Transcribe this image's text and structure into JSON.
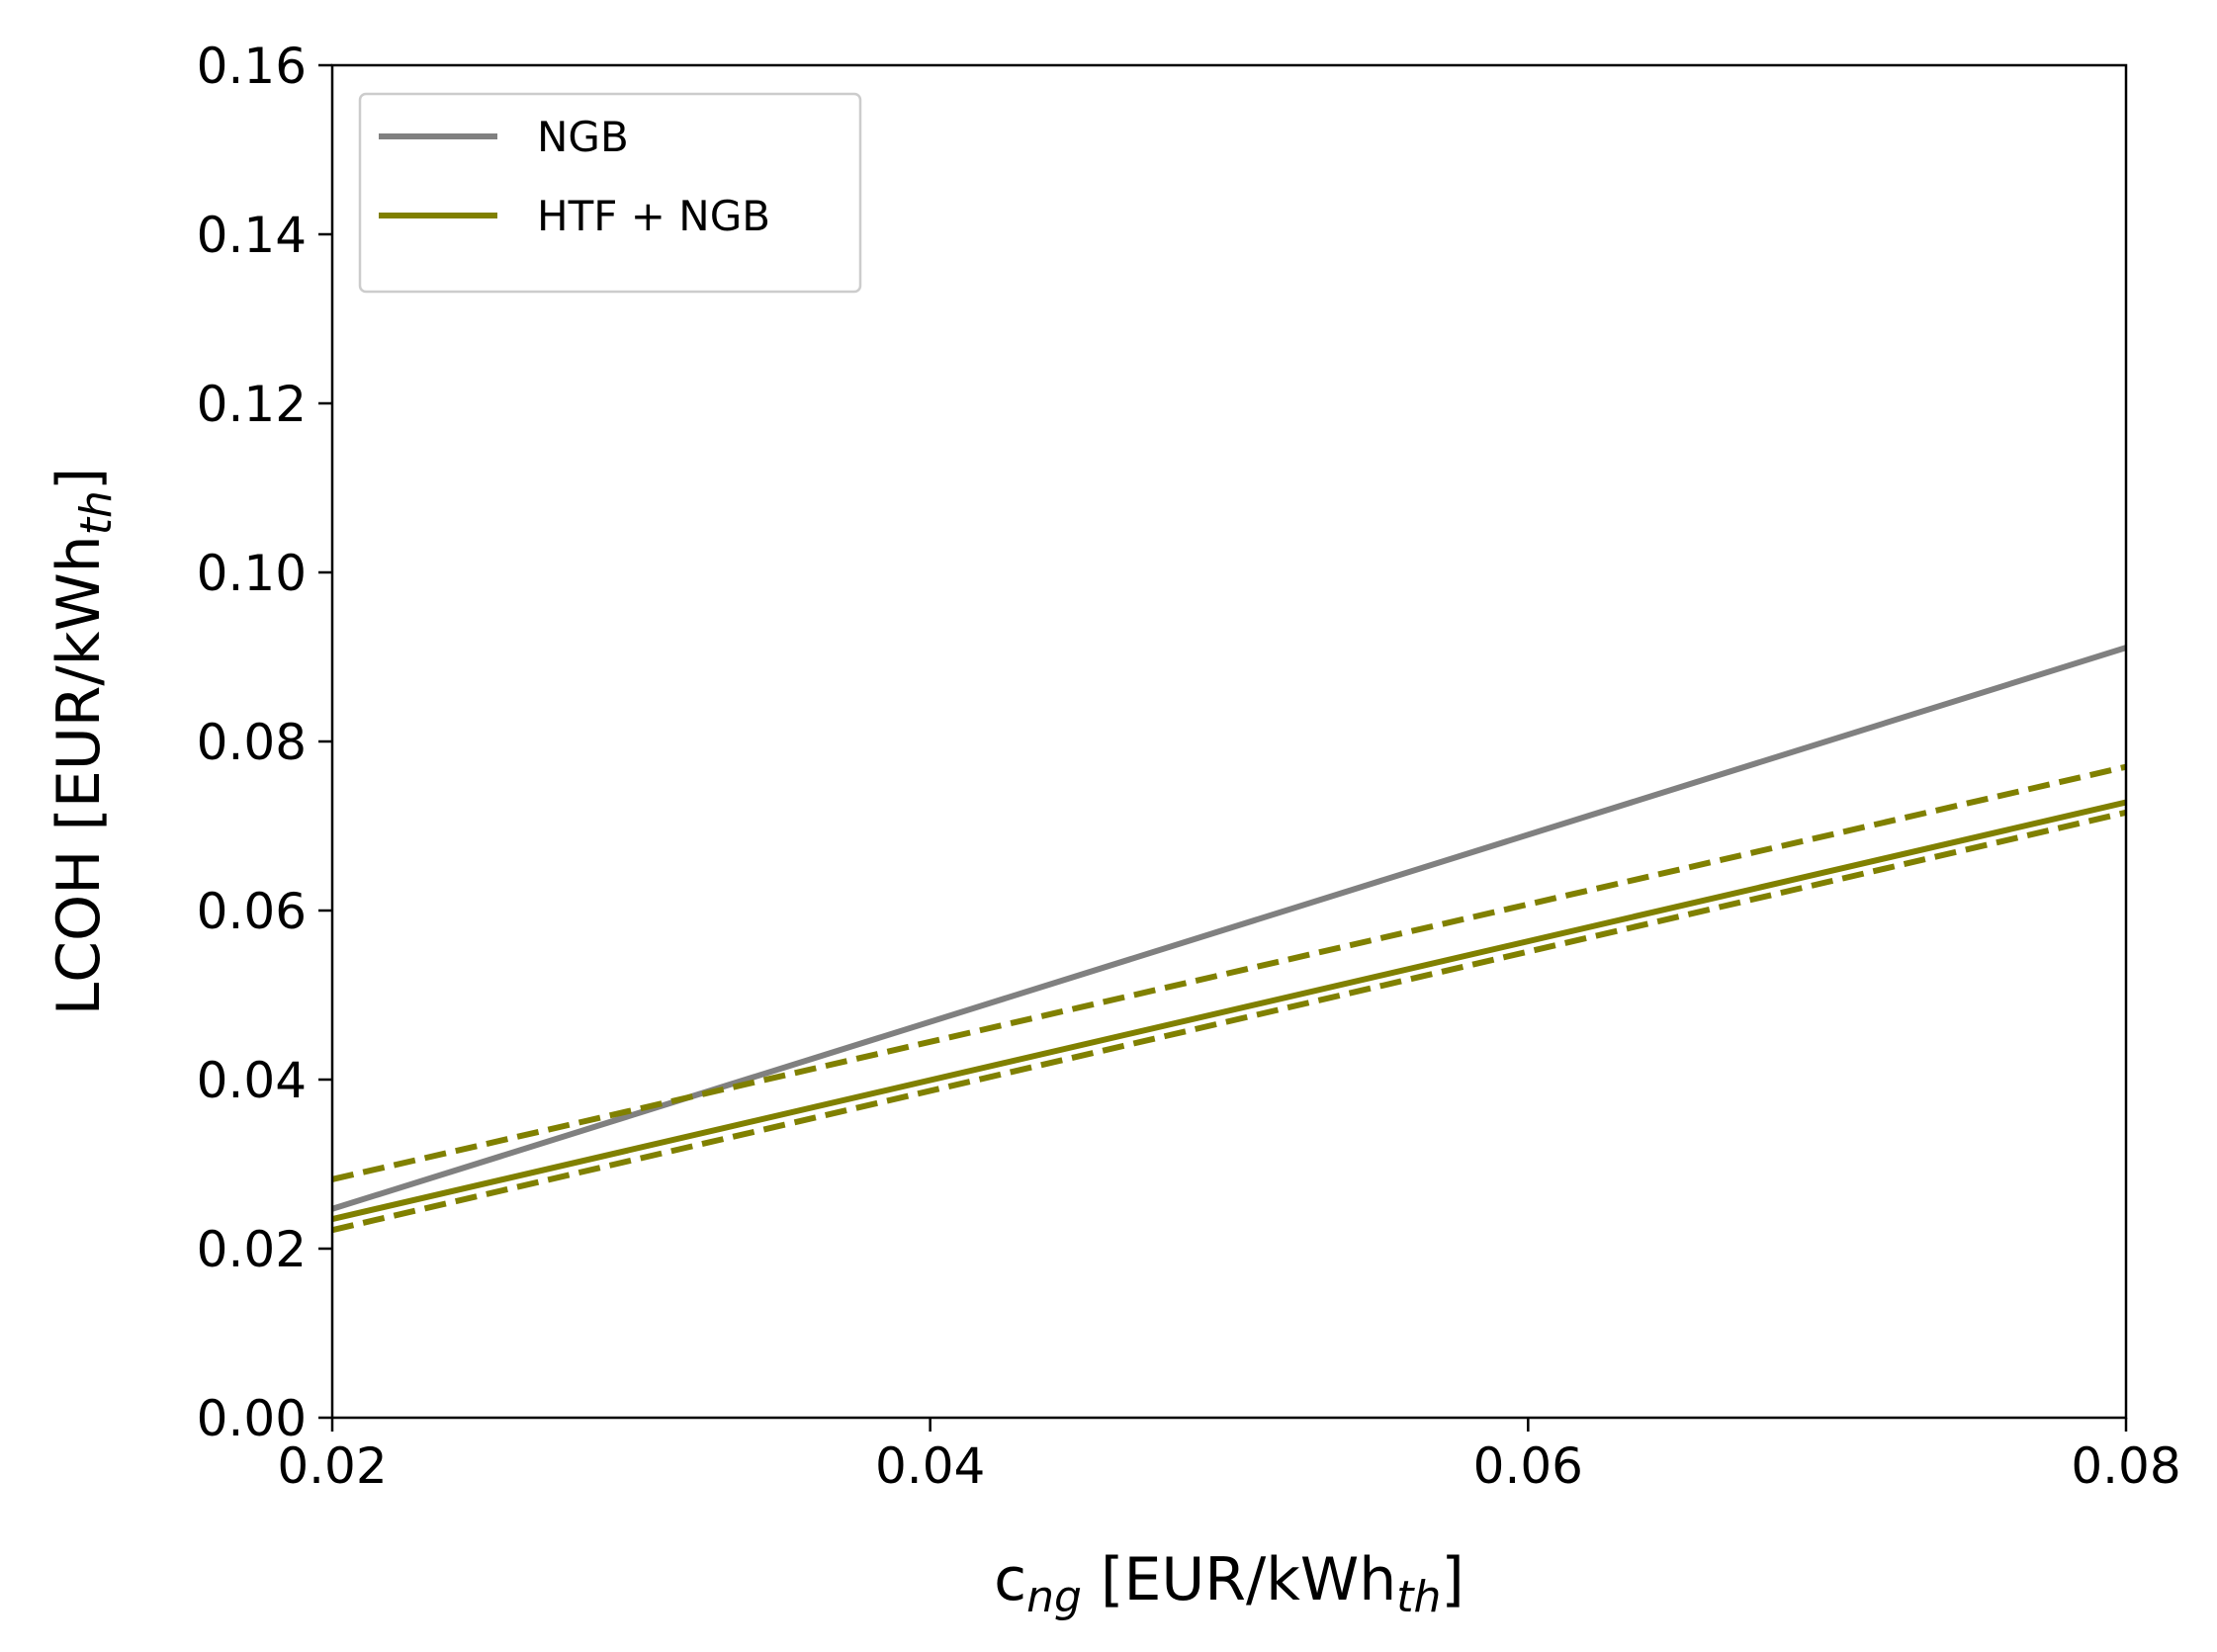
{
  "chart_data": {
    "type": "line",
    "xlabel": [
      {
        "text": "c"
      },
      {
        "text": "ng",
        "sub": true
      },
      {
        "text": " [EUR/kWh"
      },
      {
        "text": "th",
        "sub": true
      },
      {
        "text": "]"
      }
    ],
    "ylabel": [
      {
        "text": "LCOH [EUR/kWh"
      },
      {
        "text": "th",
        "sub": true
      },
      {
        "text": "]"
      }
    ],
    "x": [
      0.02,
      0.08
    ],
    "series": [
      {
        "name": "NGB",
        "color": "#808080",
        "linestyle": "solid",
        "values": [
          0.0247,
          0.0911
        ]
      },
      {
        "name": "HTF + NGB",
        "color": "#808000",
        "linestyle": "solid",
        "values": [
          0.0235,
          0.0728
        ]
      },
      {
        "color": "#808000",
        "linestyle": "dashed",
        "values": [
          0.0282,
          0.077
        ]
      },
      {
        "color": "#808000",
        "linestyle": "dashed",
        "values": [
          0.0222,
          0.0716
        ]
      }
    ],
    "xlim": [
      0.02,
      0.08
    ],
    "xticks": [
      0.02,
      0.04,
      0.06,
      0.08
    ],
    "ylim": [
      0,
      0.16
    ],
    "yticks": [
      {
        "value": 0,
        "label": "0.00"
      },
      0.02,
      0.04,
      0.06,
      0.08,
      {
        "value": 0.1,
        "label": "0.10"
      },
      0.12,
      0.14,
      0.16
    ],
    "grid": false,
    "legend": "upper left"
  }
}
